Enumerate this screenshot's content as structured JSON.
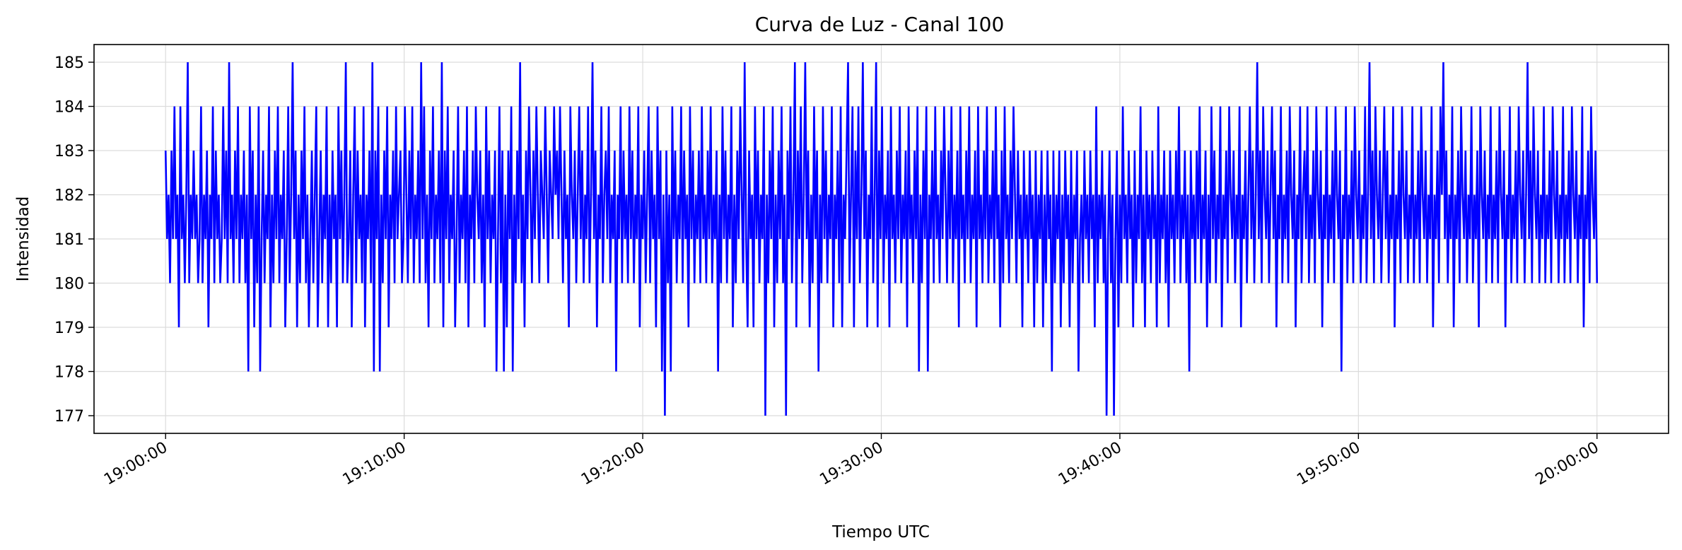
{
  "chart_data": {
    "type": "line",
    "title": "Curva de Luz - Canal 100",
    "xlabel": "Tiempo UTC",
    "ylabel": "Intensidad",
    "x_ticks": [
      "19:00:00",
      "19:10:00",
      "19:20:00",
      "19:30:00",
      "19:40:00",
      "19:50:00",
      "20:00:00"
    ],
    "y_ticks": [
      177,
      178,
      179,
      180,
      181,
      182,
      183,
      184,
      185
    ],
    "xlim": [
      "18:57:00",
      "20:03:00"
    ],
    "ylim": [
      176.6,
      185.4
    ],
    "grid": true,
    "series": [
      {
        "color": "#0000ff",
        "x_start": "19:00:00",
        "x_end": "20:00:00",
        "values": [
          183,
          181,
          182,
          180,
          183,
          181,
          184,
          181,
          182,
          179,
          184,
          181,
          182,
          180,
          182,
          185,
          180,
          182,
          181,
          183,
          181,
          182,
          180,
          181,
          184,
          180,
          182,
          181,
          183,
          179,
          182,
          181,
          184,
          180,
          183,
          181,
          182,
          180,
          181,
          184,
          181,
          183,
          180,
          185,
          181,
          182,
          180,
          183,
          181,
          184,
          180,
          182,
          181,
          183,
          180,
          182,
          178,
          184,
          181,
          183,
          179,
          182,
          180,
          184,
          178,
          181,
          183,
          180,
          182,
          181,
          184,
          179,
          182,
          180,
          183,
          181,
          184,
          180,
          182,
          181,
          183,
          179,
          181,
          184,
          180,
          182,
          185,
          181,
          183,
          179,
          182,
          180,
          183,
          181,
          184,
          180,
          182,
          179,
          181,
          183,
          180,
          182,
          184,
          179,
          181,
          183,
          180,
          182,
          181,
          184,
          179,
          182,
          180,
          183,
          181,
          182,
          179,
          184,
          181,
          183,
          180,
          182,
          185,
          180,
          181,
          183,
          179,
          182,
          184,
          180,
          183,
          181,
          182,
          180,
          184,
          179,
          182,
          181,
          183,
          180,
          185,
          178,
          183,
          181,
          184,
          178,
          182,
          180,
          183,
          181,
          184,
          179,
          182,
          181,
          183,
          180,
          184,
          181,
          182,
          183,
          180,
          181,
          184,
          182,
          180,
          183,
          181,
          184,
          180,
          182,
          181,
          183,
          180,
          185,
          181,
          184,
          180,
          182,
          179,
          183,
          181,
          184,
          180,
          182,
          181,
          183,
          180,
          185,
          179,
          183,
          181,
          184,
          180,
          182,
          181,
          183,
          179,
          181,
          184,
          180,
          182,
          181,
          183,
          180,
          184,
          179,
          182,
          181,
          183,
          180,
          184,
          182,
          181,
          183,
          180,
          182,
          179,
          184,
          181,
          183,
          180,
          182,
          181,
          183,
          178,
          181,
          184,
          180,
          183,
          178,
          182,
          179,
          183,
          181,
          184,
          178,
          182,
          180,
          183,
          181,
          185,
          180,
          182,
          179,
          183,
          181,
          184,
          182,
          180,
          183,
          181,
          184,
          182,
          180,
          183,
          182,
          181,
          184,
          182,
          180,
          183,
          182,
          181,
          184,
          182,
          183,
          181,
          184,
          182,
          180,
          183,
          181,
          182,
          179,
          184,
          182,
          181,
          183,
          180,
          182,
          184,
          181,
          183,
          180,
          182,
          181,
          184,
          180,
          182,
          185,
          181,
          183,
          179,
          182,
          181,
          184,
          180,
          182,
          183,
          181,
          184,
          180,
          182,
          181,
          183,
          178,
          182,
          181,
          184,
          180,
          183,
          181,
          182,
          180,
          184,
          181,
          183,
          180,
          182,
          181,
          184,
          179,
          182,
          181,
          183,
          180,
          182,
          184,
          180,
          183,
          181,
          182,
          179,
          184,
          181,
          183,
          178,
          182,
          177,
          183,
          180,
          182,
          178,
          184,
          181,
          183,
          180,
          182,
          181,
          184,
          180,
          183,
          181,
          182,
          179,
          184,
          181,
          183,
          180,
          182,
          181,
          183,
          180,
          184,
          181,
          182,
          180,
          183,
          181,
          184,
          180,
          182,
          181,
          183,
          178,
          182,
          180,
          184,
          181,
          183,
          180,
          182,
          181,
          184,
          179,
          182,
          180,
          183,
          181,
          184,
          182,
          180,
          185,
          181,
          179,
          183,
          181,
          182,
          179,
          184,
          181,
          183,
          180,
          182,
          181,
          184,
          177,
          182,
          180,
          183,
          181,
          184,
          179,
          182,
          180,
          183,
          181,
          184,
          180,
          182,
          177,
          183,
          181,
          184,
          180,
          182,
          185,
          179,
          183,
          181,
          184,
          180,
          182,
          185,
          181,
          183,
          179,
          182,
          180,
          184,
          181,
          183,
          178,
          182,
          180,
          184,
          181,
          183,
          180,
          182,
          181,
          184,
          179,
          182,
          181,
          183,
          180,
          184,
          179,
          182,
          181,
          183,
          185,
          180,
          182,
          184,
          179,
          183,
          181,
          184,
          180,
          182,
          185,
          181,
          183,
          179,
          182,
          181,
          184,
          180,
          182,
          185,
          179,
          183,
          181,
          184,
          180,
          182,
          181,
          183,
          179,
          184,
          181,
          182,
          180,
          183,
          181,
          184,
          180,
          182,
          181,
          183,
          179,
          184,
          181,
          182,
          180,
          183,
          181,
          184,
          178,
          182,
          180,
          183,
          181,
          184,
          178,
          182,
          181,
          183,
          180,
          184,
          181,
          182,
          180,
          183,
          181,
          184,
          182,
          180,
          183,
          181,
          184,
          180,
          182,
          181,
          183,
          179,
          184,
          181,
          182,
          180,
          183,
          181,
          184,
          180,
          182,
          181,
          183,
          179,
          184,
          181,
          182,
          180,
          183,
          181,
          184,
          180,
          182,
          181,
          183,
          180,
          184,
          181,
          182,
          179,
          183,
          180,
          184,
          181,
          182,
          180,
          183,
          181,
          184,
          182,
          180,
          183,
          181,
          182,
          179,
          183,
          181,
          182,
          180,
          183,
          181,
          182,
          179,
          183,
          180,
          182,
          181,
          183,
          179,
          182,
          180,
          183,
          181,
          182,
          178,
          183,
          180,
          182,
          181,
          183,
          179,
          182,
          180,
          183,
          181,
          182,
          179,
          183,
          180,
          182,
          181,
          183,
          178,
          181,
          182,
          180,
          183,
          181,
          182,
          180,
          183,
          181,
          182,
          179,
          184,
          180,
          182,
          181,
          183,
          180,
          182,
          177,
          181,
          183,
          180,
          182,
          177,
          181,
          183,
          179,
          182,
          180,
          184,
          181,
          182,
          180,
          183,
          181,
          182,
          179,
          183,
          180,
          182,
          181,
          184,
          180,
          182,
          179,
          183,
          181,
          182,
          180,
          183,
          181,
          182,
          179,
          184,
          180,
          182,
          181,
          183,
          180,
          182,
          179,
          183,
          181,
          182,
          180,
          183,
          181,
          184,
          180,
          182,
          181,
          183,
          180,
          182,
          178,
          183,
          181,
          182,
          180,
          183,
          181,
          184,
          180,
          182,
          181,
          183,
          179,
          182,
          180,
          184,
          181,
          183,
          180,
          182,
          181,
          184,
          179,
          182,
          181,
          183,
          180,
          184,
          182,
          181,
          183,
          180,
          182,
          181,
          184,
          179,
          182,
          181,
          183,
          180,
          182,
          184,
          181,
          183,
          180,
          182,
          185,
          181,
          183,
          180,
          184,
          182,
          181,
          183,
          180,
          182,
          184,
          181,
          183,
          179,
          182,
          181,
          184,
          180,
          182,
          181,
          183,
          180,
          184,
          182,
          181,
          183,
          179,
          182,
          181,
          184,
          180,
          182,
          183,
          181,
          184,
          180,
          182,
          181,
          183,
          180,
          184,
          182,
          181,
          183,
          179,
          182,
          181,
          184,
          180,
          182,
          181,
          183,
          180,
          184,
          182,
          181,
          183,
          178,
          182,
          181,
          184,
          180,
          182,
          181,
          183,
          180,
          184,
          182,
          181,
          183,
          180,
          182,
          181,
          184,
          180,
          182,
          185,
          181,
          183,
          180,
          184,
          182,
          181,
          183,
          180,
          182,
          184,
          181,
          183,
          180,
          182,
          181,
          184,
          179,
          182,
          181,
          183,
          180,
          184,
          182,
          181,
          183,
          180,
          182,
          181,
          184,
          180,
          182,
          181,
          183,
          180,
          184,
          182,
          181,
          183,
          180,
          182,
          181,
          184,
          179,
          182,
          181,
          183,
          180,
          184,
          182,
          185,
          181,
          183,
          180,
          182,
          181,
          184,
          179,
          182,
          181,
          183,
          180,
          184,
          182,
          181,
          183,
          180,
          182,
          181,
          184,
          180,
          182,
          181,
          183,
          179,
          184,
          182,
          181,
          183,
          180,
          182,
          181,
          184,
          180,
          182,
          181,
          183,
          180,
          184,
          182,
          181,
          183,
          179,
          182,
          181,
          184,
          180,
          182,
          181,
          183,
          180,
          184,
          182,
          181,
          183,
          180,
          182,
          185,
          181,
          183,
          180,
          184,
          182,
          181,
          183,
          180,
          182,
          181,
          184,
          180,
          182,
          181,
          183,
          180,
          184,
          182,
          181,
          183,
          180,
          182,
          181,
          184,
          180,
          182,
          181,
          183,
          180,
          184,
          182,
          181,
          183,
          180,
          182,
          181,
          184,
          179,
          182,
          181,
          183,
          180,
          184,
          182,
          181,
          183,
          180
        ]
      }
    ]
  }
}
